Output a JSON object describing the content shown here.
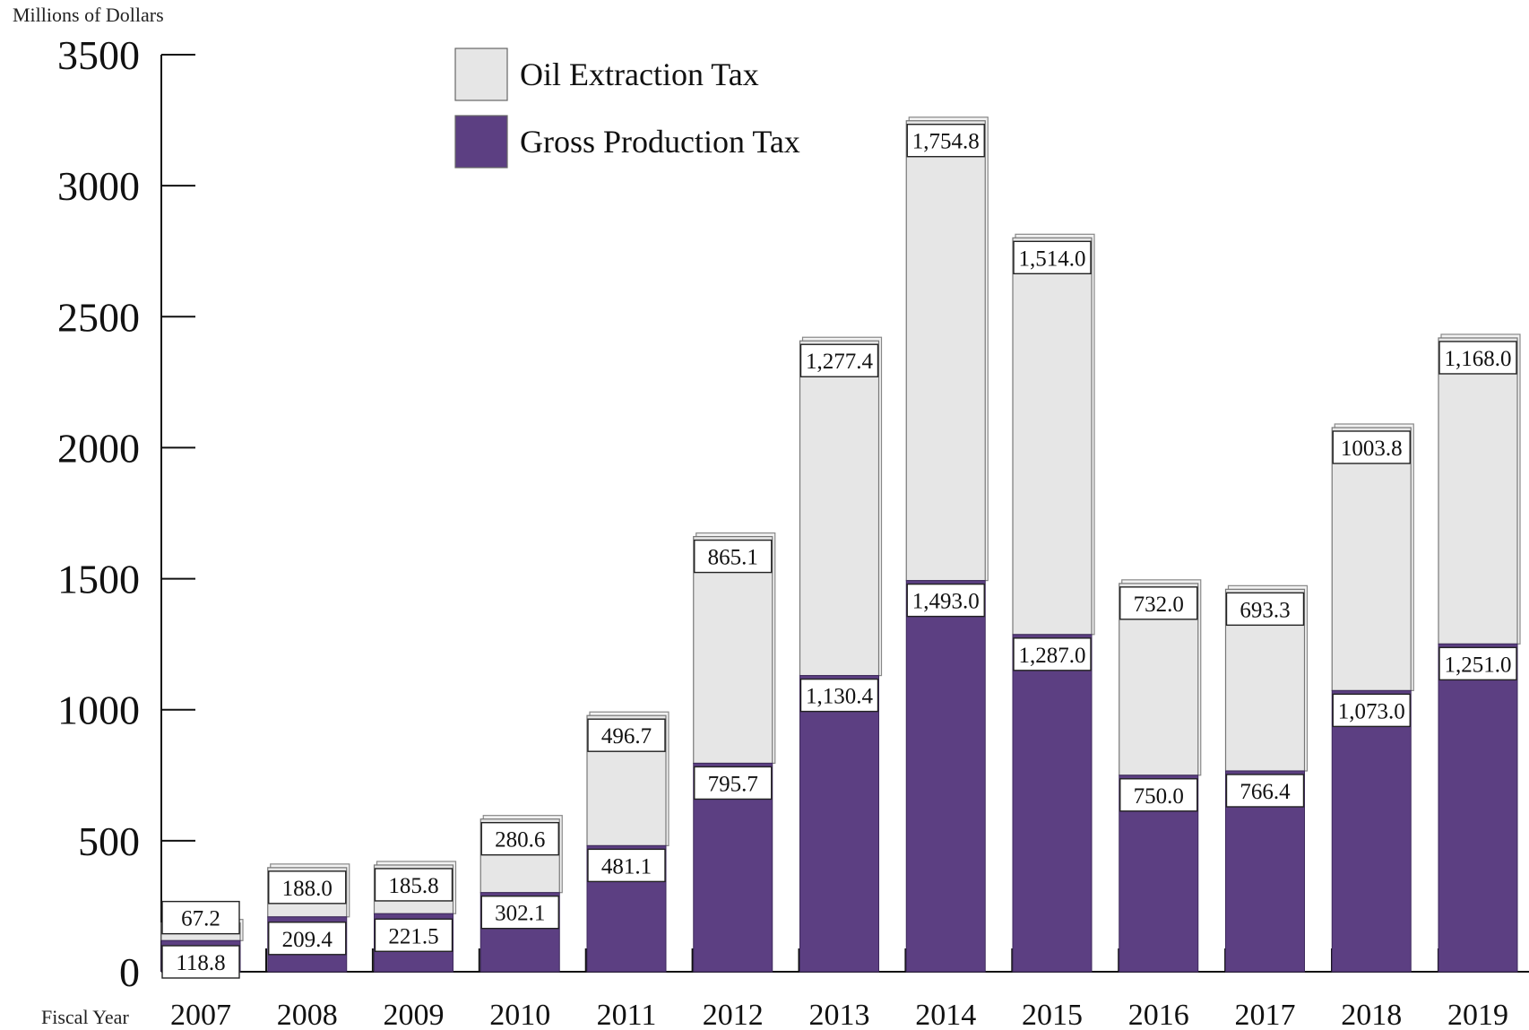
{
  "chart_data": {
    "type": "bar",
    "stacked": true,
    "ylabel": "Millions of Dollars",
    "xlabel": "Fiscal Year",
    "ylim": [
      0,
      3500
    ],
    "yticks": [
      0,
      500,
      1000,
      1500,
      2000,
      2500,
      3000,
      3500
    ],
    "categories": [
      "2007",
      "2008",
      "2009",
      "2010",
      "2011",
      "2012",
      "2013",
      "2014",
      "2015",
      "2016",
      "2017",
      "2018",
      "2019"
    ],
    "legend_position": "top-center",
    "series": [
      {
        "name": "Gross Production Tax",
        "color": "#5c3f82",
        "values": [
          118.8,
          209.4,
          221.5,
          302.1,
          481.1,
          795.7,
          1130.4,
          1493.0,
          1287.0,
          750.0,
          766.4,
          1073.0,
          1251.0
        ],
        "labels": [
          "118.8",
          "209.4",
          "221.5",
          "302.1",
          "481.1",
          "795.7",
          "1,130.4",
          "1,493.0",
          "1,287.0",
          "750.0",
          "766.4",
          "1,073.0",
          "1,251.0"
        ]
      },
      {
        "name": "Oil Extraction Tax",
        "color": "#e6e6e6",
        "values": [
          67.2,
          188.0,
          185.8,
          280.6,
          496.7,
          865.1,
          1277.4,
          1754.8,
          1514.0,
          732.0,
          693.3,
          1003.8,
          1168.0
        ],
        "labels": [
          "67.2",
          "188.0",
          "185.8",
          "280.6",
          "496.7",
          "865.1",
          "1,277.4",
          "1,754.8",
          "1,514.0",
          "732.0",
          "693.3",
          "1003.8",
          "1,168.0"
        ]
      }
    ]
  }
}
